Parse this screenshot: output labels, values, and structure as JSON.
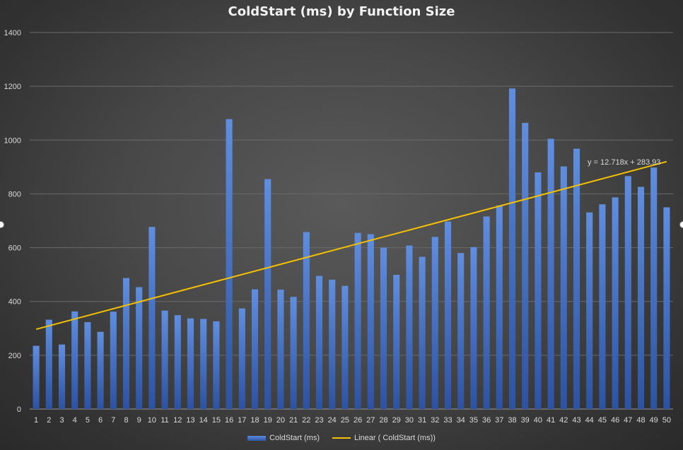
{
  "chart_data": {
    "type": "bar",
    "title": "ColdStart (ms) by Function Size",
    "xlabel": "",
    "ylabel": "",
    "ylim": [
      0,
      1400
    ],
    "yticks": [
      0,
      200,
      400,
      600,
      800,
      1000,
      1200,
      1400
    ],
    "grid": true,
    "legend_position": "bottom",
    "categories": [
      "1",
      "2",
      "3",
      "4",
      "5",
      "6",
      "7",
      "8",
      "9",
      "10",
      "11",
      "12",
      "13",
      "14",
      "15",
      "16",
      "17",
      "18",
      "19",
      "20",
      "21",
      "22",
      "23",
      "24",
      "25",
      "26",
      "27",
      "28",
      "29",
      "30",
      "31",
      "32",
      "33",
      "34",
      "35",
      "36",
      "37",
      "38",
      "39",
      "40",
      "41",
      "42",
      "43",
      "44",
      "45",
      "46",
      "47",
      "48",
      "49",
      "50"
    ],
    "series": [
      {
        "name": "ColdStart (ms)",
        "color": "#4472c4",
        "values": [
          235,
          332,
          240,
          363,
          323,
          287,
          362,
          487,
          453,
          677,
          366,
          349,
          337,
          335,
          326,
          1078,
          374,
          445,
          855,
          444,
          417,
          658,
          495,
          481,
          458,
          655,
          650,
          600,
          499,
          608,
          566,
          640,
          697,
          580,
          602,
          716,
          757,
          1192,
          1064,
          880,
          1005,
          902,
          968,
          731,
          761,
          787,
          866,
          826,
          898,
          750
        ]
      }
    ],
    "trendline": {
      "name": "Linear ( ColdStart (ms))",
      "type": "linear",
      "slope": 12.718,
      "intercept": 283.93,
      "equation": "y = 12.718x + 283.93",
      "color": "#f5c000"
    }
  }
}
